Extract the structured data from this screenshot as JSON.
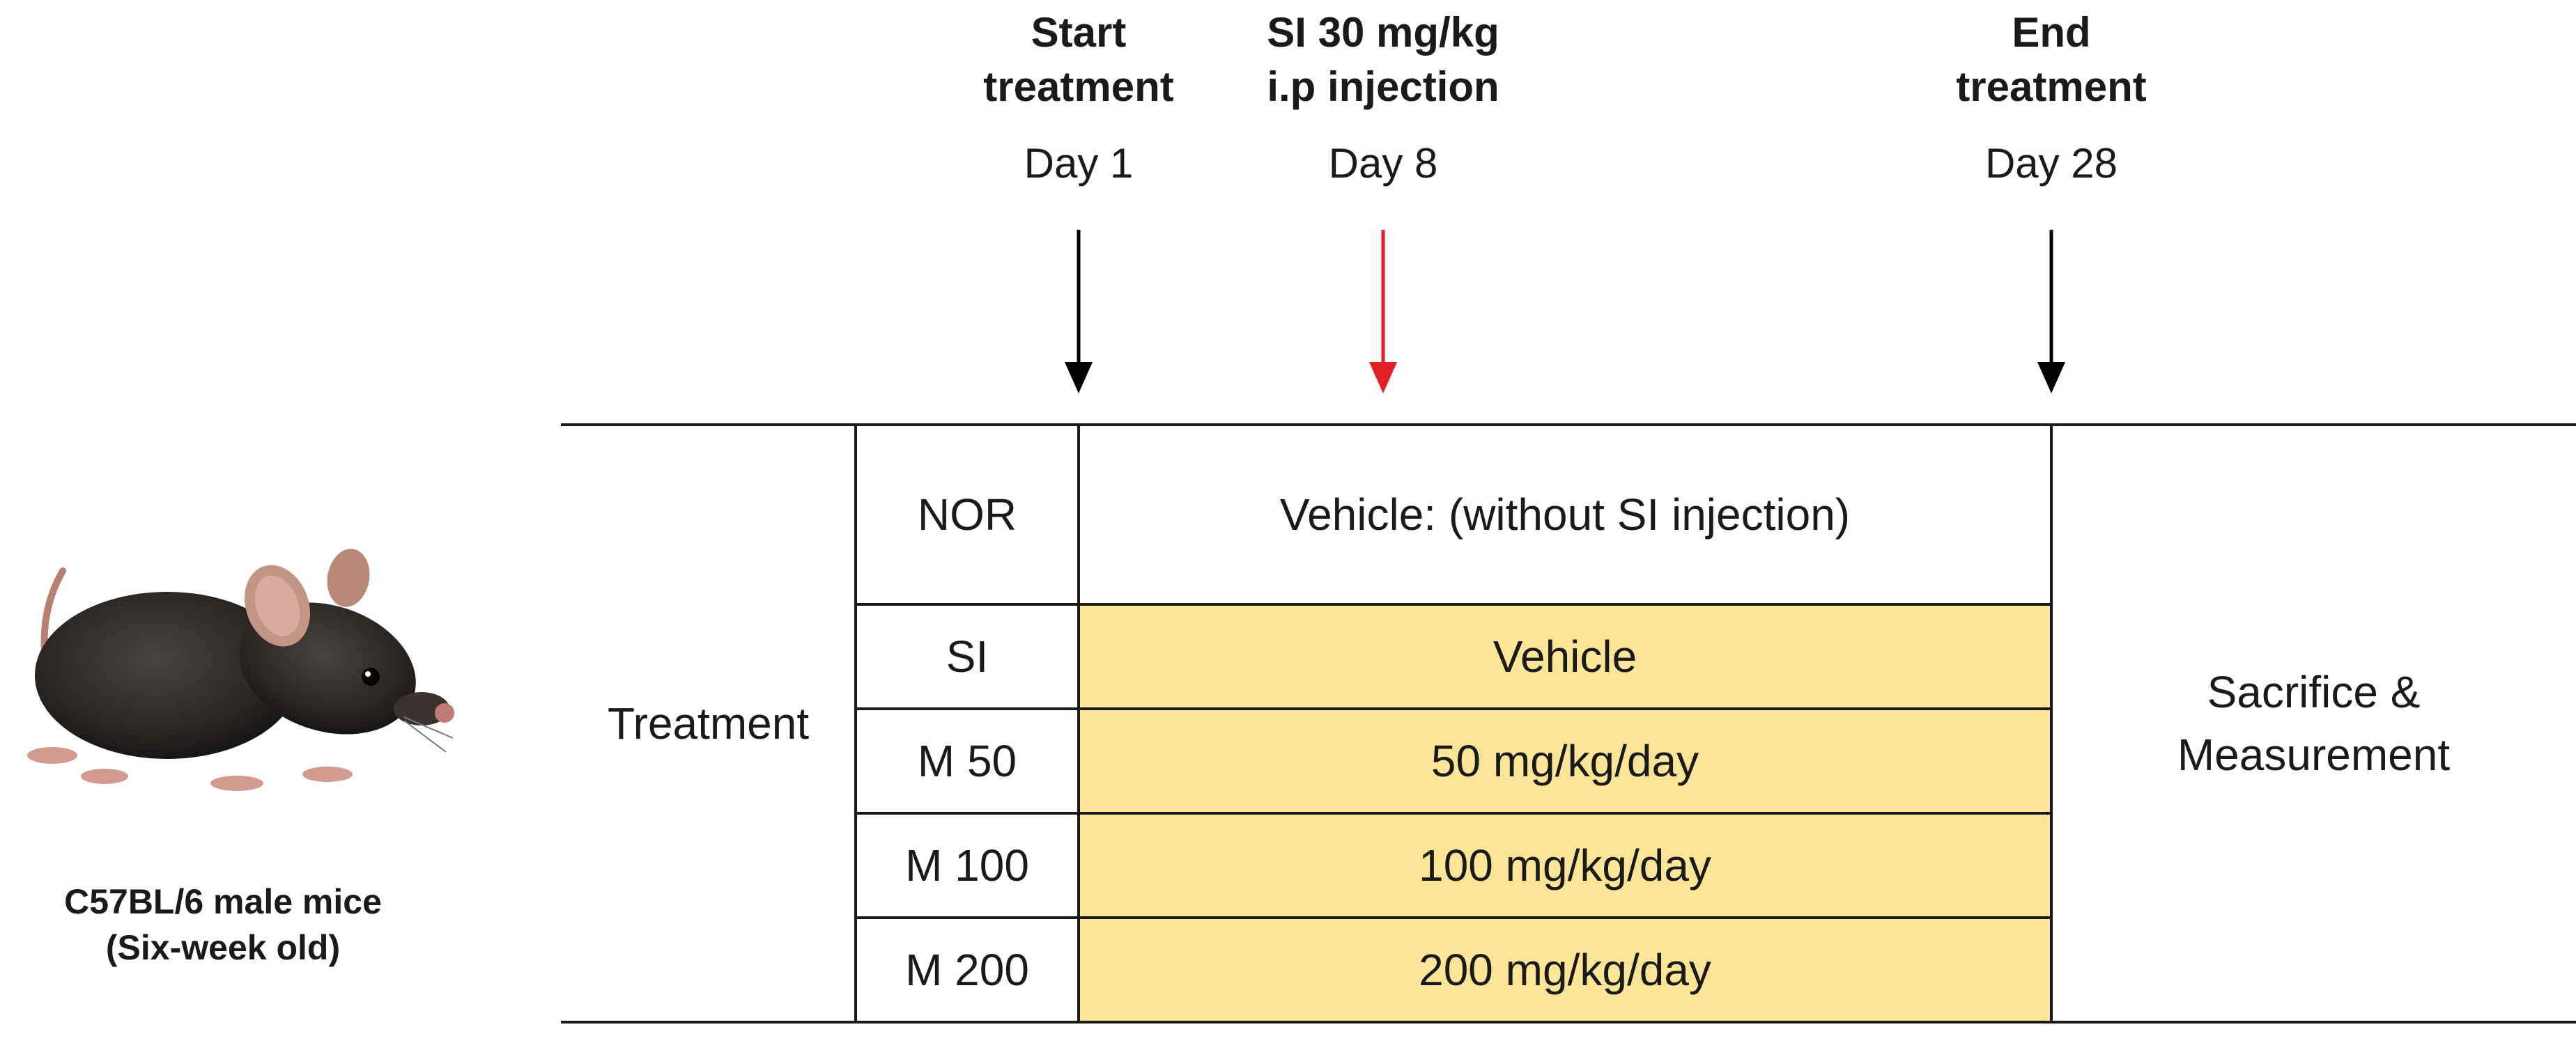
{
  "timeline": {
    "start": {
      "title_line1": "Start",
      "title_line2": "treatment",
      "day": "Day 1",
      "arrow_color": "#000000"
    },
    "injection": {
      "title_line1": "SI 30 mg/kg",
      "title_line2": "i.p injection",
      "day": "Day 8",
      "arrow_color": "#e31e24"
    },
    "end": {
      "title_line1": "End",
      "title_line2": "treatment",
      "day": "Day 28",
      "arrow_color": "#000000"
    }
  },
  "subject": {
    "caption_line1": "C57BL/6 male mice",
    "caption_line2": "(Six-week old)",
    "image_icon": "mouse-illustration"
  },
  "table": {
    "row_header": "Treatment",
    "groups": [
      {
        "code": "NOR",
        "regimen": "Vehicle: (without SI injection)"
      },
      {
        "code": "SI",
        "regimen": "Vehicle"
      },
      {
        "code": "M 50",
        "regimen": "50 mg/kg/day"
      },
      {
        "code": "M 100",
        "regimen": "100 mg/kg/day"
      },
      {
        "code": "M 200",
        "regimen": "200 mg/kg/day"
      }
    ],
    "outcome_line1": "Sacrifice &",
    "outcome_line2": "Measurement",
    "highlight_color": "#fde597"
  }
}
